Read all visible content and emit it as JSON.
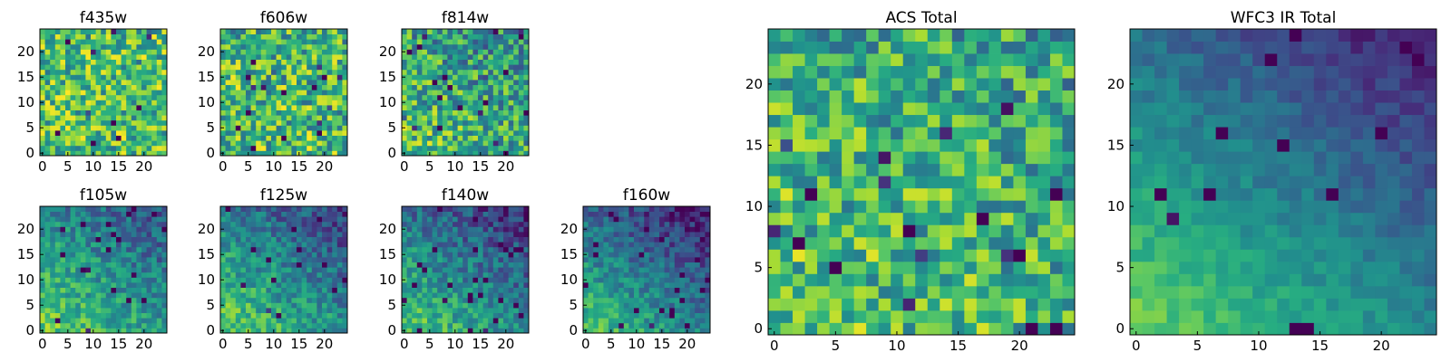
{
  "chart_data": [
    {
      "type": "heatmap",
      "title": "f435w",
      "colormap": "viridis",
      "size": 25,
      "xticks": [
        "0",
        "5",
        "10",
        "15",
        "20"
      ],
      "yticks": [
        "0",
        "5",
        "10",
        "15",
        "20"
      ],
      "field": {
        "base": 0.7,
        "gradient": 0.0,
        "gx": 0,
        "gy": 0,
        "noise": 0.3,
        "seed": 11
      }
    },
    {
      "type": "heatmap",
      "title": "f606w",
      "colormap": "viridis",
      "size": 25,
      "xticks": [
        "0",
        "5",
        "10",
        "15",
        "20"
      ],
      "yticks": [
        "0",
        "5",
        "10",
        "15",
        "20"
      ],
      "field": {
        "base": 0.68,
        "gradient": 0.05,
        "gx": 0,
        "gy": 0,
        "noise": 0.32,
        "seed": 23
      }
    },
    {
      "type": "heatmap",
      "title": "f814w",
      "colormap": "viridis",
      "size": 25,
      "xticks": [
        "0",
        "5",
        "10",
        "15",
        "20"
      ],
      "yticks": [
        "0",
        "5",
        "10",
        "15",
        "20"
      ],
      "field": {
        "base": 0.62,
        "gradient": 0.2,
        "gx": 0,
        "gy": 0,
        "noise": 0.3,
        "seed": 37
      }
    },
    {
      "type": "heatmap",
      "title": "f105w",
      "colormap": "viridis",
      "size": 25,
      "xticks": [
        "0",
        "5",
        "10",
        "15",
        "20"
      ],
      "yticks": [
        "0",
        "5",
        "10",
        "15",
        "20"
      ],
      "field": {
        "base": 0.55,
        "gradient": 0.4,
        "gx": 0,
        "gy": 0,
        "noise": 0.18,
        "seed": 41
      }
    },
    {
      "type": "heatmap",
      "title": "f125w",
      "colormap": "viridis",
      "size": 25,
      "xticks": [
        "0",
        "5",
        "10",
        "15",
        "20"
      ],
      "yticks": [
        "0",
        "5",
        "10",
        "15",
        "20"
      ],
      "field": {
        "base": 0.52,
        "gradient": 0.45,
        "gx": 0,
        "gy": 0,
        "noise": 0.18,
        "seed": 53
      }
    },
    {
      "type": "heatmap",
      "title": "f140w",
      "colormap": "viridis",
      "size": 25,
      "xticks": [
        "0",
        "5",
        "10",
        "15",
        "20"
      ],
      "yticks": [
        "0",
        "5",
        "10",
        "15",
        "20"
      ],
      "field": {
        "base": 0.48,
        "gradient": 0.48,
        "gx": 0,
        "gy": 0,
        "noise": 0.18,
        "seed": 67
      }
    },
    {
      "type": "heatmap",
      "title": "f160w",
      "colormap": "viridis",
      "size": 25,
      "xticks": [
        "0",
        "5",
        "10",
        "15",
        "20"
      ],
      "yticks": [
        "0",
        "5",
        "10",
        "15",
        "20"
      ],
      "field": {
        "base": 0.44,
        "gradient": 0.52,
        "gx": 0,
        "gy": 0,
        "noise": 0.16,
        "seed": 71
      }
    },
    {
      "type": "heatmap",
      "title": "ACS Total",
      "colormap": "viridis",
      "size": 25,
      "xticks": [
        "0",
        "5",
        "10",
        "15",
        "20"
      ],
      "yticks": [
        "0",
        "5",
        "10",
        "15",
        "20"
      ],
      "field": {
        "base": 0.66,
        "gradient": 0.12,
        "gx": 0,
        "gy": 0,
        "noise": 0.28,
        "seed": 83
      }
    },
    {
      "type": "heatmap",
      "title": "WFC3 IR Total",
      "colormap": "viridis",
      "size": 25,
      "xticks": [
        "0",
        "5",
        "10",
        "15",
        "20"
      ],
      "yticks": [
        "0",
        "5",
        "10",
        "15",
        "20"
      ],
      "field": {
        "base": 0.48,
        "gradient": 0.55,
        "gx": 0,
        "gy": 0,
        "noise": 0.08,
        "seed": 97
      }
    }
  ]
}
